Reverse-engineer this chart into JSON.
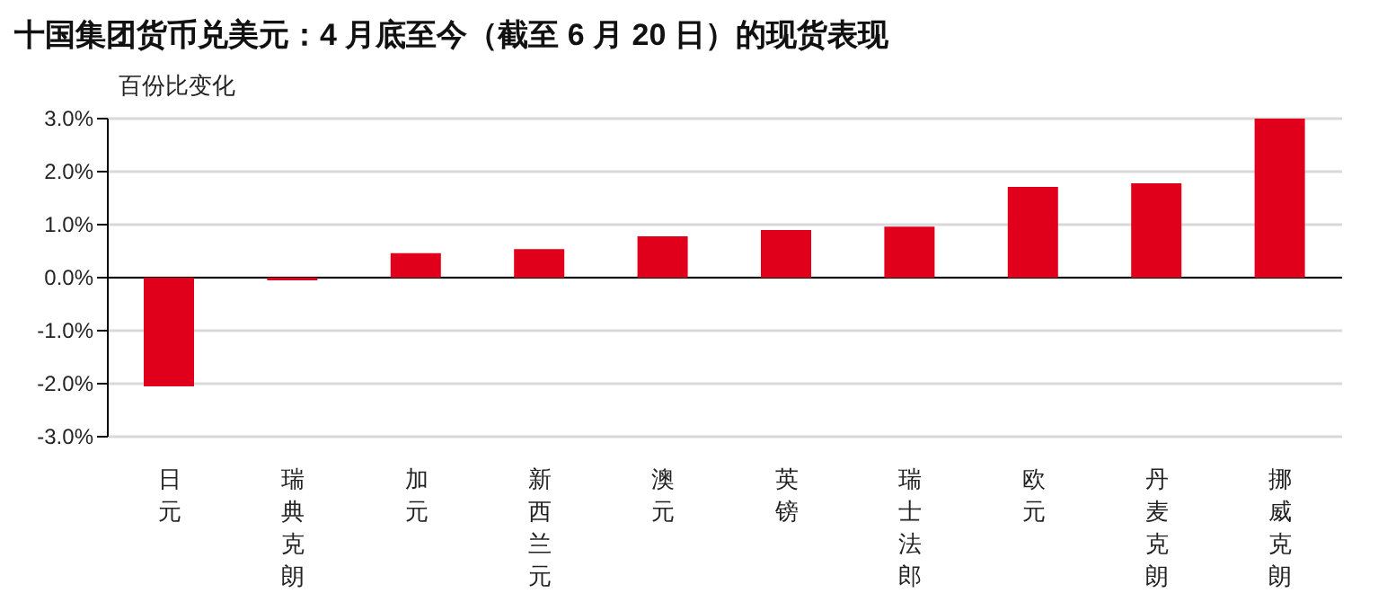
{
  "chart_data": {
    "type": "bar",
    "title": "十国集团货币兑美元：4 月底至今（截至 6 月 20 日）的现货表现",
    "ylabel": "百份比变化",
    "categories": [
      "日元",
      "瑞典克朗",
      "加元",
      "新西兰元",
      "澳元",
      "英镑",
      "瑞士法郎",
      "欧元",
      "丹麦克朗",
      "挪威克朗"
    ],
    "values": [
      -2.05,
      -0.05,
      0.46,
      0.54,
      0.78,
      0.9,
      0.96,
      1.71,
      1.78,
      3.0
    ],
    "color": "#e0001b",
    "ylim": [
      -3,
      3
    ],
    "yticks": [
      {
        "value": -3,
        "label": "-3.0%"
      },
      {
        "value": -2,
        "label": "-2.0%"
      },
      {
        "value": -1,
        "label": "-1.0%"
      },
      {
        "value": 0,
        "label": "0.0%"
      },
      {
        "value": 1,
        "label": "1.0%"
      },
      {
        "value": 2,
        "label": "2.0%"
      },
      {
        "value": 3,
        "label": "3.0%"
      }
    ],
    "grid": "y",
    "legend": false
  }
}
